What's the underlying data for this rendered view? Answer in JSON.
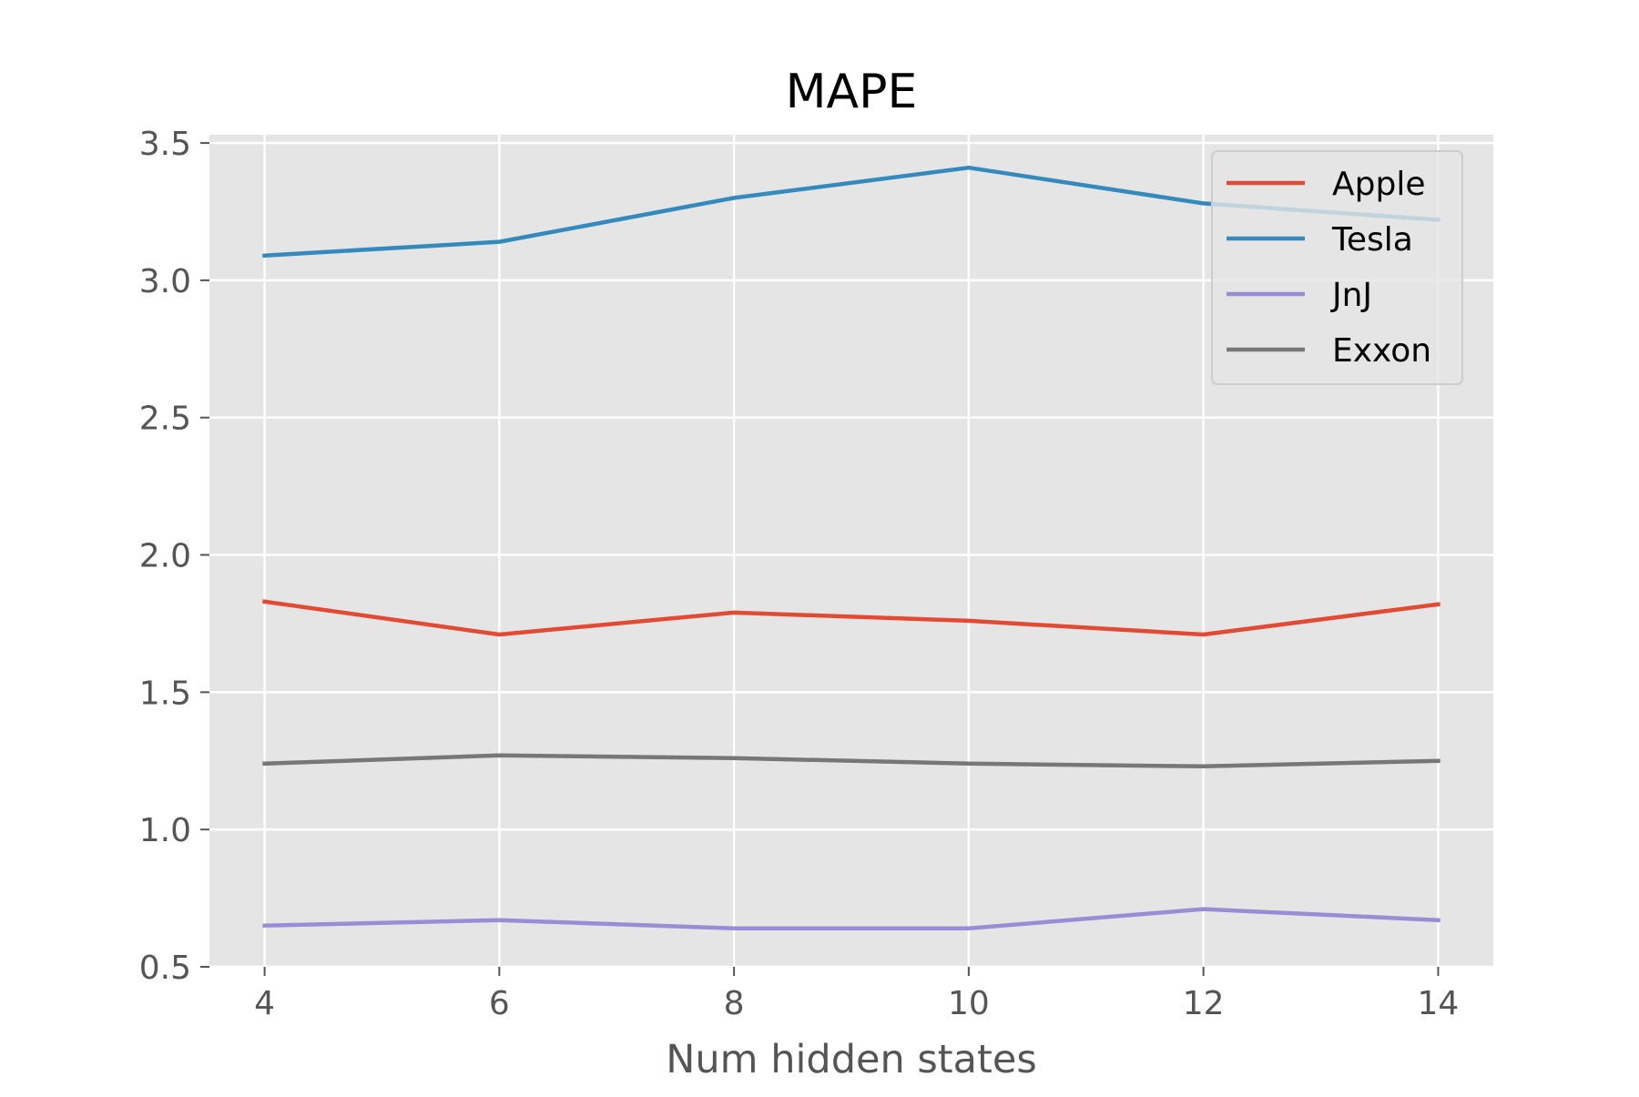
{
  "chart_data": {
    "type": "line",
    "title": "MAPE",
    "xlabel": "Num hidden states",
    "ylabel": "",
    "x": [
      4,
      6,
      8,
      10,
      12,
      14
    ],
    "xticks": [
      "4",
      "6",
      "8",
      "10",
      "12",
      "14"
    ],
    "xlim": [
      3.53,
      14.47
    ],
    "yticks": [
      "0.5",
      "1.0",
      "1.5",
      "2.0",
      "2.5",
      "3.0",
      "3.5"
    ],
    "ylim": [
      0.5,
      3.53
    ],
    "grid": true,
    "legend_position": "top-right",
    "series": [
      {
        "name": "Apple",
        "color": "#E24A33",
        "values": [
          1.83,
          1.71,
          1.79,
          1.76,
          1.71,
          1.82
        ]
      },
      {
        "name": "Tesla",
        "color": "#348ABD",
        "values": [
          3.09,
          3.14,
          3.3,
          3.41,
          3.28,
          3.22
        ]
      },
      {
        "name": "JnJ",
        "color": "#988ED5",
        "values": [
          0.65,
          0.67,
          0.64,
          0.64,
          0.71,
          0.67
        ]
      },
      {
        "name": "Exxon",
        "color": "#777777",
        "values": [
          1.24,
          1.27,
          1.26,
          1.24,
          1.23,
          1.25
        ]
      }
    ],
    "colors": {
      "plot_background": "#E5E5E5",
      "grid": "#FFFFFF",
      "legend_background": "#E5E5E5",
      "legend_border": "#CCCCCC"
    }
  }
}
